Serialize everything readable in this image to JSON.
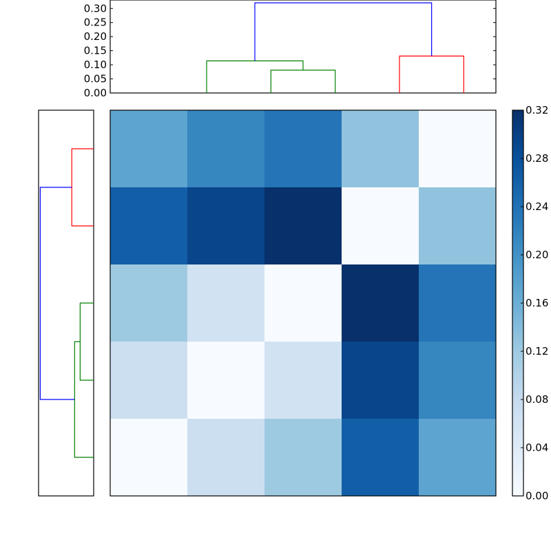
{
  "chart_data": [
    {
      "type": "dendrogram",
      "orientation": "top",
      "ylim": [
        0,
        0.33
      ],
      "yticks": [
        "0.00",
        "0.05",
        "0.10",
        "0.15",
        "0.20",
        "0.25",
        "0.30"
      ],
      "ytick_values": [
        0,
        0.05,
        0.1,
        0.15,
        0.2,
        0.25,
        0.3
      ],
      "leaf_count": 5,
      "links": [
        {
          "left": 2.5,
          "right": 3.5,
          "left_h": 0.0,
          "right_h": 0.0,
          "height": 0.081,
          "color": "#008000"
        },
        {
          "left": 1.5,
          "right": 3.0,
          "left_h": 0.0,
          "right_h": 0.081,
          "height": 0.114,
          "color": "#008000"
        },
        {
          "left": 4.5,
          "right": 5.5,
          "left_h": 0.0,
          "right_h": 0.0,
          "height": 0.131,
          "color": "#ff0000"
        },
        {
          "left": 2.25,
          "right": 5.0,
          "left_h": 0.114,
          "right_h": 0.131,
          "height": 0.32,
          "color": "#0000ff"
        }
      ]
    },
    {
      "type": "dendrogram",
      "orientation": "left",
      "leaf_count": 5,
      "xlim": [
        0,
        0.33
      ],
      "links": [
        {
          "a": 2.5,
          "b": 3.5,
          "a_h": 0.0,
          "b_h": 0.0,
          "height": 0.081,
          "color": "#008000"
        },
        {
          "a": 3.0,
          "b": 4.5,
          "a_h": 0.081,
          "b_h": 0.0,
          "height": 0.114,
          "color": "#008000"
        },
        {
          "a": 0.5,
          "b": 1.5,
          "a_h": 0.0,
          "b_h": 0.0,
          "height": 0.131,
          "color": "#ff0000"
        },
        {
          "a": 1.0,
          "b": 3.75,
          "a_h": 0.131,
          "b_h": 0.114,
          "height": 0.32,
          "color": "#0000ff"
        }
      ]
    },
    {
      "type": "heatmap",
      "rows": 5,
      "cols": 5,
      "values": [
        [
          0.174,
          0.214,
          0.236,
          0.13,
          0.0
        ],
        [
          0.262,
          0.295,
          0.32,
          0.0,
          0.13
        ],
        [
          0.12,
          0.062,
          0.0,
          0.32,
          0.236
        ],
        [
          0.07,
          0.0,
          0.062,
          0.295,
          0.214
        ],
        [
          0.0,
          0.07,
          0.12,
          0.262,
          0.174
        ]
      ],
      "colormap": [
        "#f7fbff",
        "#deebf7",
        "#c6dbef",
        "#9ecae1",
        "#6baed6",
        "#4292c6",
        "#2171b5",
        "#08519c",
        "#08306b"
      ],
      "vmin": 0,
      "vmax": 0.32
    },
    {
      "type": "colorbar",
      "ticks": [
        "0.00",
        "0.04",
        "0.08",
        "0.12",
        "0.16",
        "0.20",
        "0.24",
        "0.28",
        "0.32"
      ],
      "tick_values": [
        0,
        0.04,
        0.08,
        0.12,
        0.16,
        0.2,
        0.24,
        0.28,
        0.32
      ],
      "vmin": 0,
      "vmax": 0.32
    }
  ]
}
